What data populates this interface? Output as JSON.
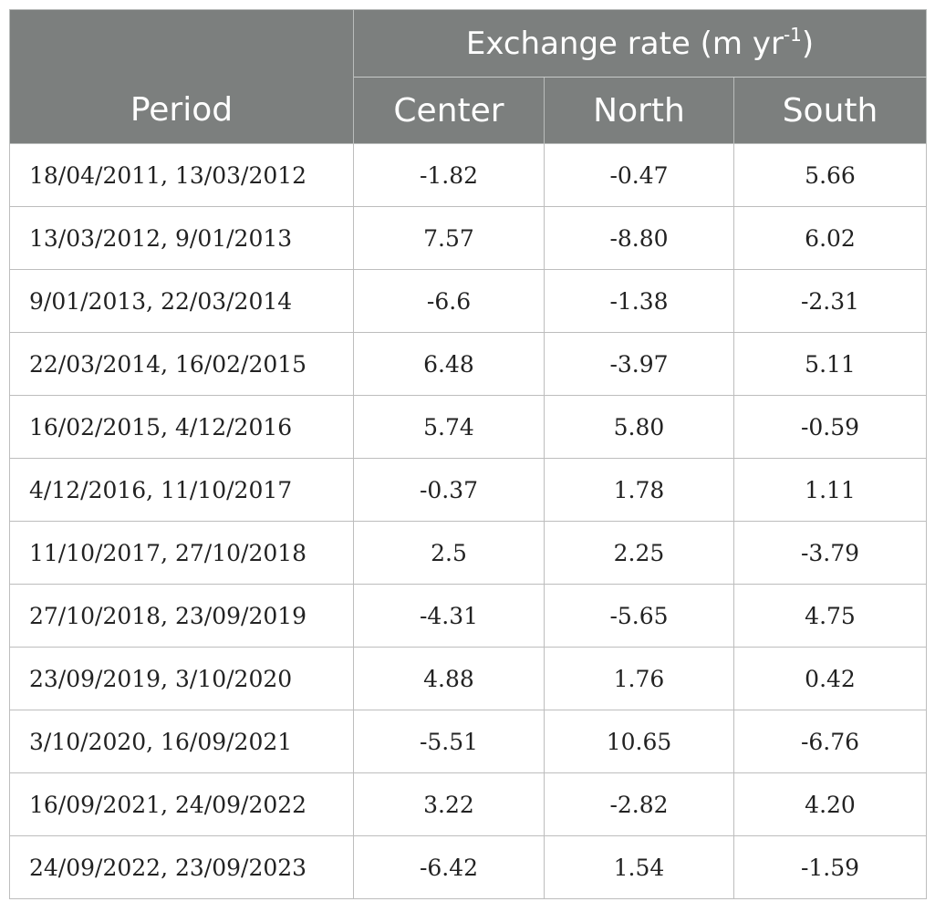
{
  "header": {
    "period_label": "Period",
    "group_label": "Exchange rate (m yr",
    "group_superscript": "-1",
    "group_close": ")",
    "columns": [
      "Center",
      "North",
      "South"
    ]
  },
  "rows": [
    {
      "period": "18/04/2011, 13/03/2012",
      "center": "-1.82",
      "north": "-0.47",
      "south": "5.66"
    },
    {
      "period": "13/03/2012, 9/01/2013",
      "center": "7.57",
      "north": "-8.80",
      "south": "6.02"
    },
    {
      "period": "9/01/2013, 22/03/2014",
      "center": "-6.6",
      "north": "-1.38",
      "south": "-2.31"
    },
    {
      "period": "22/03/2014, 16/02/2015",
      "center": "6.48",
      "north": "-3.97",
      "south": "5.11"
    },
    {
      "period": "16/02/2015, 4/12/2016",
      "center": "5.74",
      "north": "5.80",
      "south": "-0.59"
    },
    {
      "period": "4/12/2016, 11/10/2017",
      "center": "-0.37",
      "north": "1.78",
      "south": "1.11"
    },
    {
      "period": "11/10/2017, 27/10/2018",
      "center": "2.5",
      "north": "2.25",
      "south": "-3.79"
    },
    {
      "period": "27/10/2018, 23/09/2019",
      "center": "-4.31",
      "north": "-5.65",
      "south": "4.75"
    },
    {
      "period": "23/09/2019, 3/10/2020",
      "center": "4.88",
      "north": "1.76",
      "south": "0.42"
    },
    {
      "period": "3/10/2020, 16/09/2021",
      "center": "-5.51",
      "north": "10.65",
      "south": "-6.76"
    },
    {
      "period": "16/09/2021, 24/09/2022",
      "center": "3.22",
      "north": "-2.82",
      "south": "4.20"
    },
    {
      "period": "24/09/2022, 23/09/2023",
      "center": "-6.42",
      "north": "1.54",
      "south": "-1.59"
    }
  ],
  "colors": {
    "header_bg": "#7c7f7e",
    "header_text": "#ffffff",
    "grid": "#bdbdbd"
  }
}
